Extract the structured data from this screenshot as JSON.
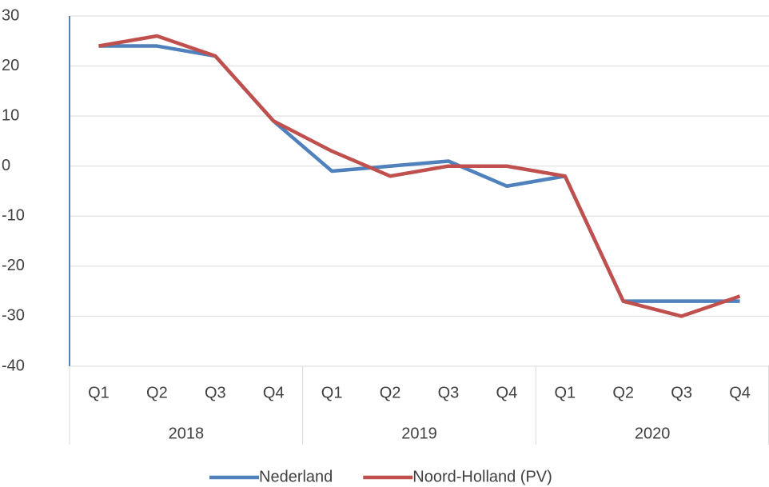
{
  "chart_data": {
    "type": "line",
    "categories": [
      "Q1",
      "Q2",
      "Q3",
      "Q4",
      "Q1",
      "Q2",
      "Q3",
      "Q4",
      "Q1",
      "Q2",
      "Q3",
      "Q4"
    ],
    "groups": [
      "2018",
      "2019",
      "2020"
    ],
    "series": [
      {
        "name": "Nederland",
        "color": "#4f81bd",
        "values": [
          24,
          24,
          22,
          9,
          -1,
          0,
          1,
          -4,
          -2,
          -27,
          -27,
          -27
        ]
      },
      {
        "name": "Noord-Holland (PV)",
        "color": "#c0504d",
        "values": [
          24,
          26,
          22,
          9,
          3,
          -2,
          0,
          0,
          -2,
          -27,
          -30,
          -26
        ]
      }
    ],
    "ylim": [
      -40,
      30
    ],
    "yticks": [
      -40,
      -30,
      -20,
      -10,
      0,
      10,
      20,
      30
    ],
    "grid": true,
    "legend": "bottom"
  }
}
